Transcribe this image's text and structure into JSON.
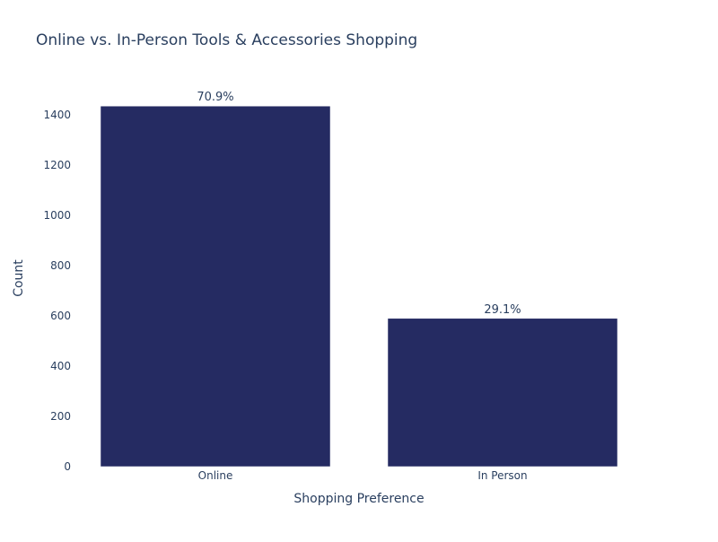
{
  "chart_data": {
    "type": "bar",
    "title": "Online vs. In-Person Tools & Accessories Shopping",
    "xlabel": "Shopping Preference",
    "ylabel": "Count",
    "categories": [
      "Online",
      "In Person"
    ],
    "values": [
      1435,
      590
    ],
    "data_labels": [
      "70.9%",
      "29.1%"
    ],
    "yticks": [
      0,
      200,
      400,
      600,
      800,
      1000,
      1200,
      1400
    ],
    "ylim": [
      0,
      1500
    ],
    "grid": false,
    "legend": "none",
    "bar_color": "#252b62"
  }
}
